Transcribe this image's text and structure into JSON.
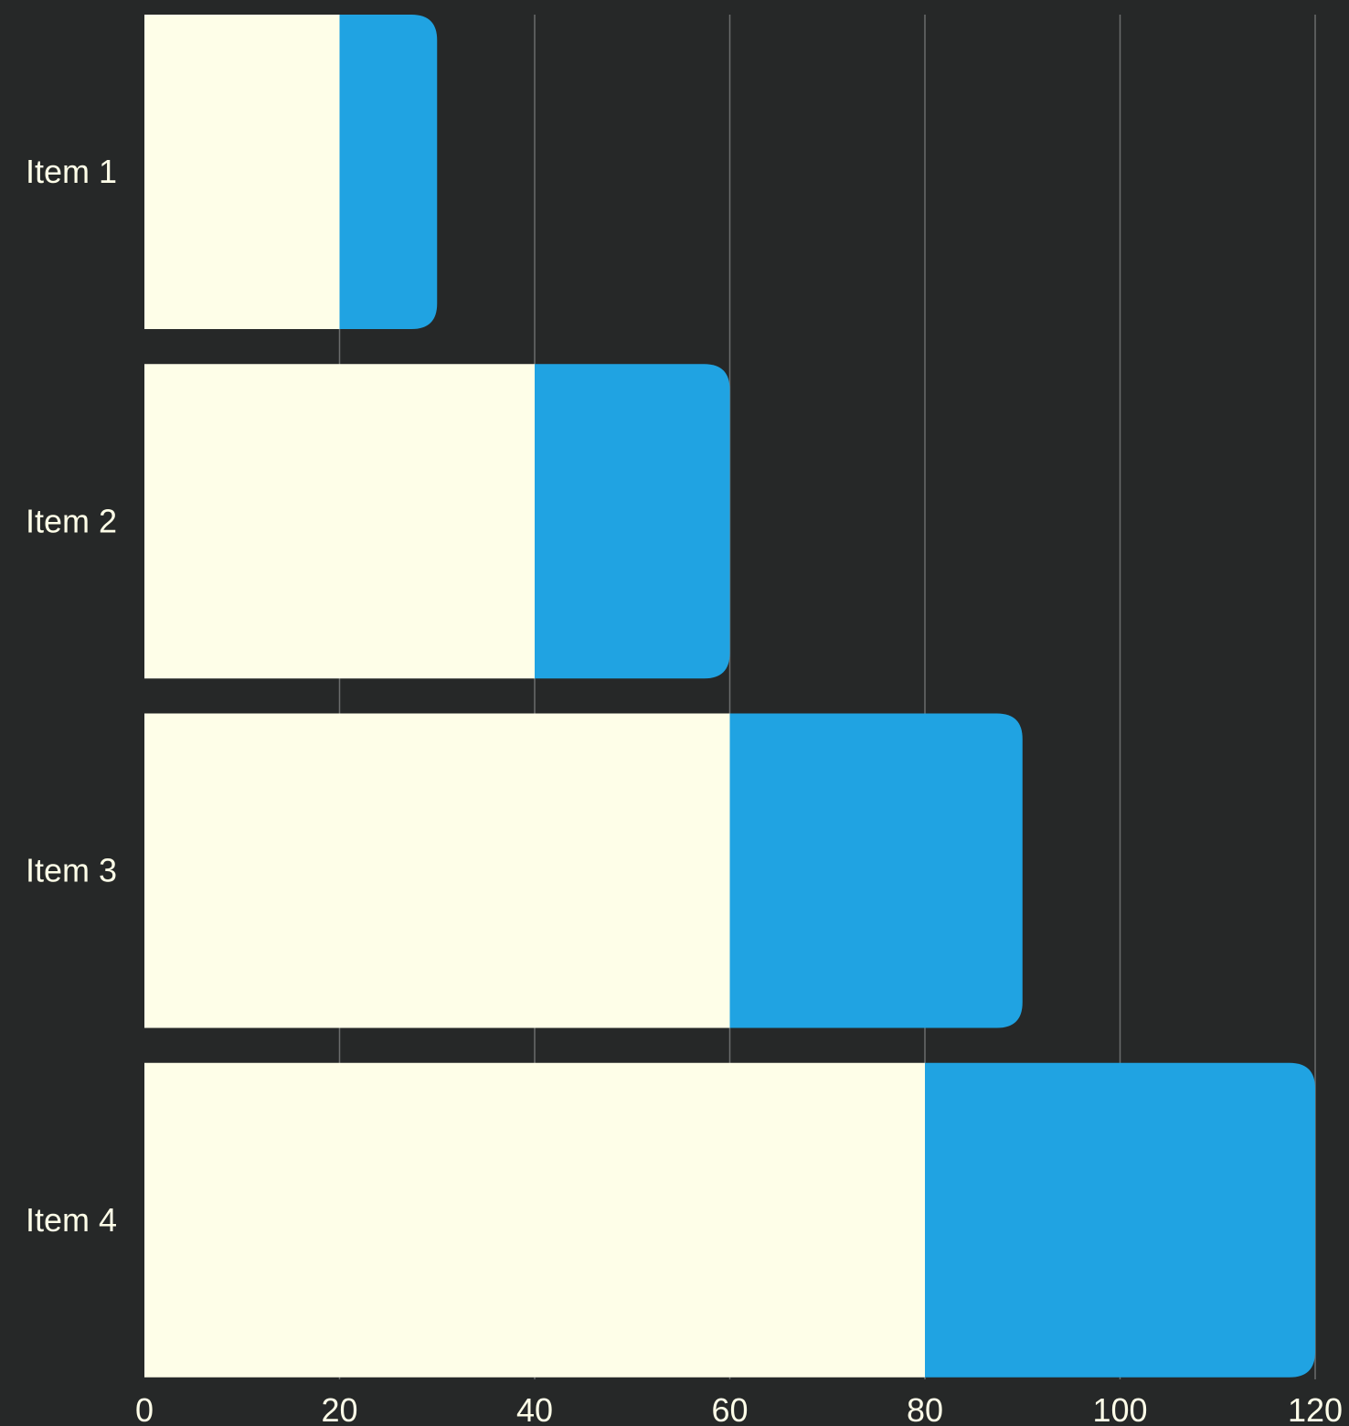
{
  "chart_data": {
    "type": "bar",
    "orientation": "horizontal",
    "stacked": true,
    "categories": [
      "Item 1",
      "Item 2",
      "Item 3",
      "Item 4"
    ],
    "series": [
      {
        "values": [
          20,
          40,
          60,
          80
        ],
        "color": "#FEFEE8"
      },
      {
        "values": [
          10,
          20,
          30,
          40
        ],
        "color": "#20A3E2"
      }
    ],
    "xlim": [
      0,
      120
    ],
    "xticks": [
      0,
      20,
      40,
      60,
      80,
      100,
      120
    ],
    "grid": true,
    "legend": "none"
  },
  "colors": {
    "background": "#262828",
    "grid": "#6A6C6C",
    "text": "#FEFEE8"
  }
}
